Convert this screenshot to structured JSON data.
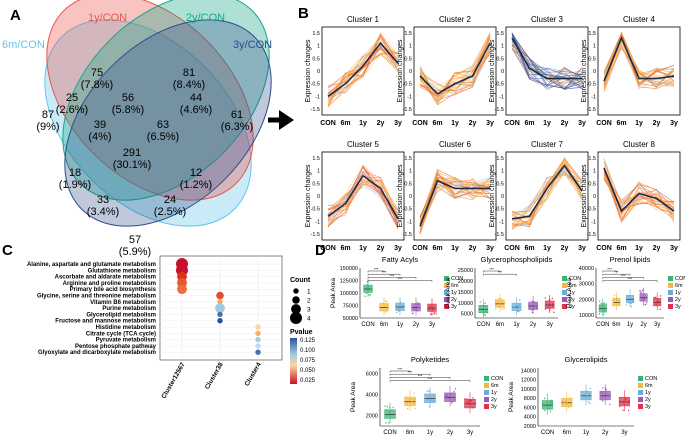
{
  "panel_labels": {
    "a": "A",
    "b": "B",
    "c": "C",
    "d": "D"
  },
  "venn": {
    "sets": [
      "1y/CON",
      "2y/CON",
      "3y/CON",
      "6m/CON"
    ],
    "set_colors": [
      "#e8564f",
      "#19a789",
      "#2e4d8c",
      "#63c6e8"
    ],
    "regions": [
      {
        "count": "75",
        "pct": "(7.8%)"
      },
      {
        "count": "81",
        "pct": "(8.4%)"
      },
      {
        "count": "87",
        "pct": "(9%)"
      },
      {
        "count": "61",
        "pct": "(6.3%)"
      },
      {
        "count": "25",
        "pct": "(2.6%)"
      },
      {
        "count": "56",
        "pct": "(5.8%)"
      },
      {
        "count": "44",
        "pct": "(4.6%)"
      },
      {
        "count": "39",
        "pct": "(4%)"
      },
      {
        "count": "63",
        "pct": "(6.5%)"
      },
      {
        "count": "291",
        "pct": "(30.1%)"
      },
      {
        "count": "18",
        "pct": "(1.9%)"
      },
      {
        "count": "12",
        "pct": "(1.2%)"
      },
      {
        "count": "33",
        "pct": "(3.4%)"
      },
      {
        "count": "24",
        "pct": "(2.5%)"
      },
      {
        "count": "57",
        "pct": "(5.9%)"
      }
    ]
  },
  "clusters": {
    "ylabel": "Expression changes",
    "x_ticks": [
      "CON",
      "6m",
      "1y",
      "2y",
      "3y"
    ],
    "y_ticks": [
      "1.5",
      "1",
      "0.5",
      "0",
      "-0.5",
      "-1",
      "-1.5"
    ],
    "items": [
      {
        "title": "Cluster 1",
        "mean": [
          -1.0,
          -0.5,
          0.2,
          1.1,
          0.3
        ]
      },
      {
        "title": "Cluster 2",
        "mean": [
          -0.2,
          -0.9,
          -0.5,
          -0.2,
          1.1
        ]
      },
      {
        "title": "Cluster 3",
        "mean": [
          1.3,
          0.1,
          -0.3,
          -0.3,
          -0.3
        ]
      },
      {
        "title": "Cluster 4",
        "mean": [
          -0.4,
          1.3,
          -0.3,
          -0.3,
          -0.2
        ]
      },
      {
        "title": "Cluster 5",
        "mean": [
          -0.8,
          -0.3,
          0.8,
          0.3,
          -0.9
        ]
      },
      {
        "title": "Cluster 6",
        "mean": [
          -1.2,
          0.6,
          0.3,
          0.3,
          0.3
        ]
      },
      {
        "title": "Cluster 7",
        "mean": [
          -0.9,
          -0.8,
          0.3,
          1.2,
          0.2
        ]
      },
      {
        "title": "Cluster 8",
        "mean": [
          1.1,
          -0.6,
          0.1,
          -0.1,
          -0.6
        ]
      }
    ]
  },
  "pathways": {
    "pathways": [
      "Alanine, aspartate and glutamate metabolism",
      "Glutathione metabolism",
      "Ascorbate and aldarate metabolism",
      "Arginine and proline metabolism",
      "Primary bile acid biosynthesis",
      "Glycine, serine and threonine metabolism",
      "Vitamin B6 metabolism",
      "Purine metabolism",
      "Glycerolipid metabolism",
      "Fructose and mannose metabolism",
      "Histidine metabolism",
      "Citrate cycle (TCA cycle)",
      "Pyruvate metabolism",
      "Pentose phosphate pathway",
      "Glyoxylate and dicarboxylate metabolism"
    ],
    "x_categories": [
      "Cluster12567",
      "Cluster38",
      "Cluster4"
    ],
    "size_legend": {
      "title": "Count",
      "values": [
        "1",
        "2",
        "3",
        "4"
      ]
    },
    "color_legend": {
      "title": "Pvalue",
      "ticks": [
        "0.125",
        "0.100",
        "0.075",
        "0.050",
        "0.025"
      ]
    },
    "points": [
      {
        "x": 0,
        "y": 0,
        "count": 4,
        "color": "#c8102e"
      },
      {
        "x": 0,
        "y": 1,
        "count": 4,
        "color": "#c8102e"
      },
      {
        "x": 0,
        "y": 2,
        "count": 3,
        "color": "#d7301f"
      },
      {
        "x": 0,
        "y": 3,
        "count": 3,
        "color": "#e8552f"
      },
      {
        "x": 0,
        "y": 4,
        "count": 3,
        "color": "#ee6b3b"
      },
      {
        "x": 1,
        "y": 5,
        "count": 2,
        "color": "#e34a33"
      },
      {
        "x": 1,
        "y": 6,
        "count": 1,
        "color": "#f6a85d"
      },
      {
        "x": 1,
        "y": 7,
        "count": 3,
        "color": "#9ecae1"
      },
      {
        "x": 1,
        "y": 8,
        "count": 1,
        "color": "#4a6fb5"
      },
      {
        "x": 1,
        "y": 9,
        "count": 1,
        "color": "#2c4fa2"
      },
      {
        "x": 2,
        "y": 10,
        "count": 1,
        "color": "#fdd49e"
      },
      {
        "x": 2,
        "y": 11,
        "count": 1,
        "color": "#f4b266"
      },
      {
        "x": 2,
        "y": 12,
        "count": 1,
        "color": "#a6cee3"
      },
      {
        "x": 2,
        "y": 13,
        "count": 1,
        "color": "#c6dbef"
      },
      {
        "x": 2,
        "y": 14,
        "count": 1,
        "color": "#4a6fb5"
      }
    ]
  },
  "boxplots": {
    "ylabel": "Peak Area",
    "groups": [
      "CON",
      "6m",
      "1y",
      "2y",
      "3y"
    ],
    "group_colors": [
      "#3cb371",
      "#f5b942",
      "#6aaed6",
      "#9b59b6",
      "#e0314b"
    ],
    "sig_label": "***",
    "panels": [
      {
        "title": "Fatty Acyls",
        "y_ticks": [
          "150000",
          "125000",
          "100000",
          "75000",
          "50000"
        ],
        "y_min": 50000,
        "y_max": 150000,
        "medians": [
          108000,
          71000,
          72000,
          71000,
          70000
        ]
      },
      {
        "title": "Glycerophospholipids",
        "y_ticks": [
          "25000",
          "20000",
          "15000",
          "10000",
          "5000"
        ],
        "y_min": 3000,
        "y_max": 26000,
        "medians": [
          7000,
          9500,
          8000,
          8500,
          9000
        ]
      },
      {
        "title": "Prenol lipids",
        "y_ticks": [
          "40000",
          "30000",
          "20000",
          "10000"
        ],
        "y_min": 8000,
        "y_max": 40000,
        "medians": [
          14000,
          18000,
          20000,
          21000,
          18000
        ]
      },
      {
        "title": "Polyketides",
        "y_ticks": [
          "6000",
          "4000",
          "2000"
        ],
        "y_min": 1000,
        "y_max": 6500,
        "medians": [
          2100,
          3300,
          3600,
          3700,
          3100
        ]
      },
      {
        "title": "Glycerolipids",
        "y_ticks": [
          "14000",
          "12000",
          "10000",
          "8000",
          "6000",
          "4000",
          "2000"
        ],
        "y_min": 2000,
        "y_max": 14500,
        "medians": [
          6500,
          7000,
          8500,
          8500,
          7200
        ]
      }
    ]
  }
}
